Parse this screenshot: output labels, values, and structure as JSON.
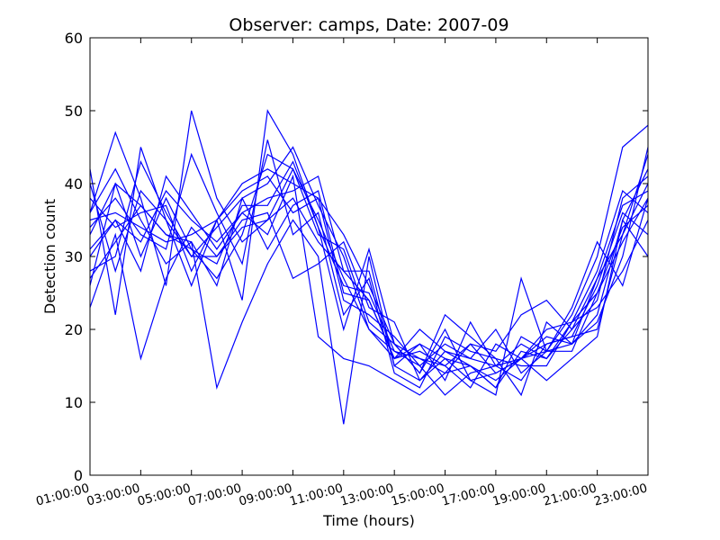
{
  "chart_data": {
    "type": "line",
    "title": "Observer: camps, Date: 2007-09",
    "xlabel": "Time (hours)",
    "ylabel": "Detection count",
    "ylim": [
      0,
      60
    ],
    "yticks": [
      0,
      10,
      20,
      30,
      40,
      50,
      60
    ],
    "xlim": [
      1,
      23
    ],
    "xticks": [
      {
        "value": 1,
        "label": "01:00:00"
      },
      {
        "value": 3,
        "label": "03:00:00"
      },
      {
        "value": 5,
        "label": "05:00:00"
      },
      {
        "value": 7,
        "label": "07:00:00"
      },
      {
        "value": 9,
        "label": "09:00:00"
      },
      {
        "value": 11,
        "label": "11:00:00"
      },
      {
        "value": 13,
        "label": "13:00:00"
      },
      {
        "value": 15,
        "label": "15:00:00"
      },
      {
        "value": 17,
        "label": "17:00:00"
      },
      {
        "value": 19,
        "label": "19:00:00"
      },
      {
        "value": 21,
        "label": "21:00:00"
      },
      {
        "value": 23,
        "label": "23:00:00"
      }
    ],
    "grid": false,
    "legend": "none",
    "color": "#0000ff",
    "x": [
      1,
      2,
      3,
      4,
      5,
      6,
      7,
      8,
      9,
      10,
      11,
      12,
      13,
      14,
      15,
      16,
      17,
      18,
      19,
      20,
      21,
      22,
      23
    ],
    "series": [
      {
        "values": [
          42,
          22,
          45,
          35,
          26,
          35,
          24,
          50,
          44,
          34,
          20,
          31,
          18,
          14,
          20,
          13,
          11,
          27,
          17,
          22,
          30,
          45,
          48
        ]
      },
      {
        "values": [
          36,
          47,
          38,
          26,
          50,
          38,
          32,
          35,
          38,
          32,
          28,
          24,
          16,
          20,
          17,
          16,
          20,
          14,
          17,
          18,
          22,
          35,
          30
        ]
      },
      {
        "values": [
          26,
          40,
          37,
          33,
          32,
          12,
          21,
          29,
          35,
          30,
          7,
          30,
          15,
          13,
          16,
          15,
          13,
          16,
          20,
          21,
          25,
          32,
          38
        ]
      },
      {
        "values": [
          31,
          35,
          28,
          41,
          36,
          31,
          36,
          33,
          41,
          19,
          16,
          15,
          13,
          11,
          14,
          18,
          17,
          22,
          24,
          20,
          27,
          33,
          40
        ]
      },
      {
        "values": [
          38,
          34,
          36,
          37,
          28,
          35,
          40,
          42,
          40,
          38,
          33,
          26,
          18,
          14,
          22,
          19,
          16,
          11,
          21,
          18,
          21,
          30,
          45
        ]
      },
      {
        "values": [
          33,
          40,
          30,
          38,
          31,
          27,
          33,
          44,
          42,
          35,
          27,
          20,
          17,
          15,
          11,
          14,
          15,
          18,
          16,
          21,
          28,
          39,
          36
        ]
      },
      {
        "values": [
          23,
          33,
          16,
          27,
          34,
          30,
          35,
          36,
          27,
          29,
          32,
          23,
          21,
          13,
          17,
          15,
          12,
          19,
          17,
          23,
          32,
          26,
          38
        ]
      },
      {
        "values": [
          36,
          42,
          35,
          29,
          32,
          26,
          38,
          31,
          37,
          39,
          25,
          24,
          16,
          18,
          13,
          21,
          15,
          16,
          13,
          16,
          19,
          35,
          42
        ]
      },
      {
        "values": [
          28,
          30,
          43,
          36,
          30,
          34,
          38,
          40,
          45,
          37,
          30,
          20,
          16,
          17,
          15,
          12,
          18,
          16,
          18,
          19,
          26,
          36,
          33
        ]
      },
      {
        "values": [
          34,
          38,
          33,
          31,
          44,
          36,
          29,
          46,
          33,
          36,
          22,
          27,
          14,
          12,
          19,
          17,
          16,
          15,
          15,
          21,
          23,
          28,
          35
        ]
      },
      {
        "values": [
          40,
          28,
          39,
          35,
          30,
          30,
          34,
          35,
          42,
          33,
          31,
          21,
          18,
          16,
          14,
          15,
          12,
          17,
          16,
          20,
          24,
          38,
          41
        ]
      },
      {
        "values": [
          30,
          35,
          32,
          39,
          35,
          32,
          36,
          38,
          39,
          41,
          28,
          28,
          15,
          18,
          16,
          13,
          14,
          16,
          19,
          18,
          27,
          37,
          39
        ]
      },
      {
        "values": [
          35,
          36,
          34,
          32,
          33,
          35,
          39,
          41,
          36,
          38,
          24,
          22,
          19,
          15,
          18,
          16,
          15,
          13,
          18,
          19,
          20,
          33,
          44
        ]
      },
      {
        "values": [
          27,
          32,
          37,
          33,
          31,
          29,
          37,
          37,
          43,
          34,
          26,
          25,
          17,
          16,
          15,
          18,
          14,
          16,
          17,
          17,
          25,
          34,
          37
        ]
      }
    ]
  }
}
